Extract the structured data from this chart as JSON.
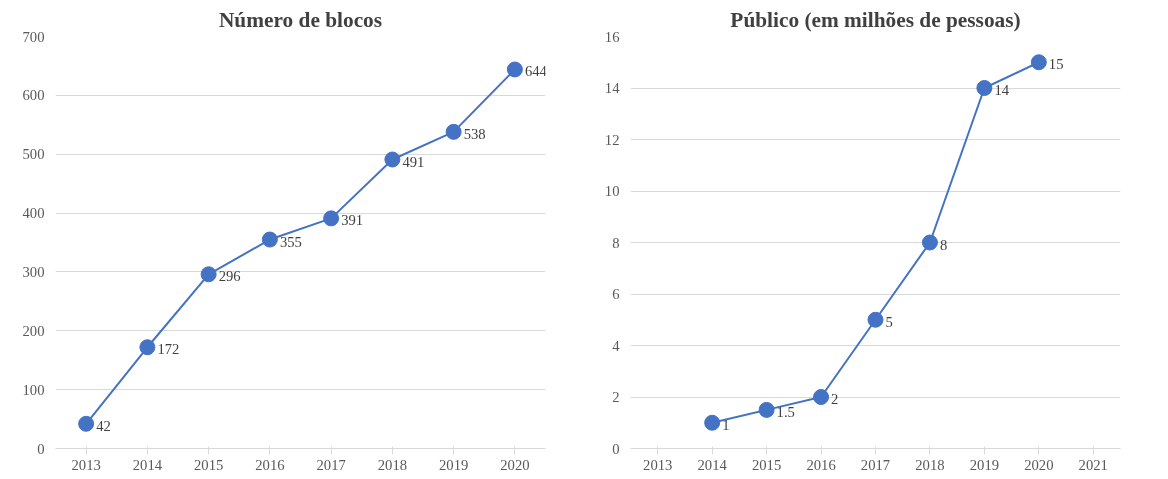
{
  "chart_data": [
    {
      "type": "line",
      "title": "Número de blocos",
      "categories": [
        "2013",
        "2014",
        "2015",
        "2016",
        "2017",
        "2018",
        "2019",
        "2020"
      ],
      "series": [
        {
          "color": "#4472c4",
          "values": [
            42,
            172,
            296,
            355,
            391,
            491,
            538,
            644
          ]
        }
      ],
      "ylim": [
        0,
        700
      ],
      "yticks": [
        0,
        100,
        200,
        300,
        400,
        500,
        600,
        700
      ],
      "grid": "y",
      "marker": "circle",
      "data_labels": true
    },
    {
      "type": "line",
      "title": "Público (em milhões de pessoas)",
      "categories": [
        "2013",
        "2014",
        "2015",
        "2016",
        "2017",
        "2018",
        "2019",
        "2020",
        "2021"
      ],
      "series": [
        {
          "color": "#4472c4",
          "values": [
            null,
            1,
            1.5,
            2,
            5,
            8,
            14,
            15,
            null
          ]
        }
      ],
      "ylim": [
        0,
        16
      ],
      "yticks": [
        0,
        2,
        4,
        6,
        8,
        10,
        12,
        14,
        16
      ],
      "grid": "y",
      "marker": "circle",
      "data_labels": true
    }
  ]
}
